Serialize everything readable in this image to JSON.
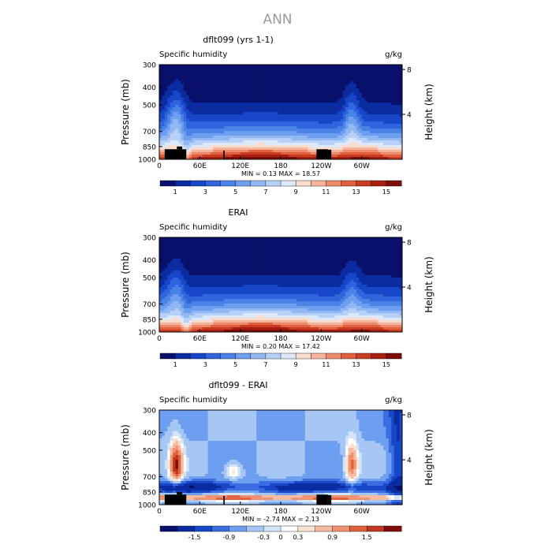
{
  "figure": {
    "title": "ANN"
  },
  "chart_data": [
    {
      "type": "heatmap",
      "title": "dflt099 (yrs 1-1)",
      "left_subtitle": "Specific humidity",
      "right_subtitle": "g/kg",
      "ylabel": "Pressure (mb)",
      "y2label": "Height (km)",
      "x_ticks": [
        "0",
        "60E",
        "120E",
        "180",
        "120W",
        "60W"
      ],
      "x_tick_values": [
        0,
        60,
        120,
        180,
        240,
        300
      ],
      "xlim": [
        0,
        360
      ],
      "y_ticks": [
        "300",
        "400",
        "500",
        "700",
        "850",
        "1000"
      ],
      "y_tick_values": [
        300,
        400,
        500,
        700,
        850,
        1000
      ],
      "ylim": [
        1000,
        300
      ],
      "y_scale": "log",
      "y2_ticks": [
        "4",
        "8"
      ],
      "y2_tick_values": [
        4,
        8
      ],
      "stats": "MIN =   0.13   MAX =  18.57",
      "colorbar_labels": [
        "1",
        "3",
        "5",
        "7",
        "9",
        "11",
        "13",
        "15"
      ],
      "colorbar_colors": [
        "#08106b",
        "#0a2ca0",
        "#1846c8",
        "#2f64dc",
        "#4b82e6",
        "#6e9ef0",
        "#92b8f4",
        "#b7d0f7",
        "#dde8f8",
        "#f8dccd",
        "#f5b49b",
        "#ee8a6a",
        "#e06040",
        "#c83c22",
        "#a81e10",
        "#7e0c08"
      ],
      "field": "humidity",
      "terrain": true
    },
    {
      "type": "heatmap",
      "title": "ERAI",
      "left_subtitle": "Specific humidity",
      "right_subtitle": "g/kg",
      "ylabel": "Pressure (mb)",
      "y2label": "Height (km)",
      "x_ticks": [
        "0",
        "60E",
        "120E",
        "180",
        "120W",
        "60W"
      ],
      "x_tick_values": [
        0,
        60,
        120,
        180,
        240,
        300
      ],
      "xlim": [
        0,
        360
      ],
      "y_ticks": [
        "300",
        "400",
        "500",
        "700",
        "850",
        "1000"
      ],
      "y_tick_values": [
        300,
        400,
        500,
        700,
        850,
        1000
      ],
      "ylim": [
        1000,
        300
      ],
      "y_scale": "log",
      "y2_ticks": [
        "4",
        "8"
      ],
      "y2_tick_values": [
        4,
        8
      ],
      "stats": "MIN =   0.20   MAX =  17.42",
      "colorbar_labels": [
        "1",
        "3",
        "5",
        "7",
        "9",
        "11",
        "13",
        "15"
      ],
      "colorbar_colors": [
        "#08106b",
        "#0a2ca0",
        "#1846c8",
        "#2f64dc",
        "#4b82e6",
        "#6e9ef0",
        "#92b8f4",
        "#b7d0f7",
        "#dde8f8",
        "#f8dccd",
        "#f5b49b",
        "#ee8a6a",
        "#e06040",
        "#c83c22",
        "#a81e10",
        "#7e0c08"
      ],
      "field": "humidity",
      "terrain": false
    },
    {
      "type": "heatmap",
      "title": "dflt099 - ERAI",
      "left_subtitle": "Specific humidity",
      "right_subtitle": "g/kg",
      "ylabel": "Pressure (mb)",
      "y2label": "Height (km)",
      "x_ticks": [
        "0",
        "60E",
        "120E",
        "180",
        "120W",
        "60W"
      ],
      "x_tick_values": [
        0,
        60,
        120,
        180,
        240,
        300
      ],
      "xlim": [
        0,
        360
      ],
      "y_ticks": [
        "300",
        "400",
        "500",
        "700",
        "850",
        "1000"
      ],
      "y_tick_values": [
        300,
        400,
        500,
        700,
        850,
        1000
      ],
      "ylim": [
        1000,
        300
      ],
      "y_scale": "log",
      "y2_ticks": [
        "4",
        "8"
      ],
      "y2_tick_values": [
        4,
        8
      ],
      "stats": "MIN =  -2.74   MAX =   2.13",
      "colorbar_labels": [
        "-1.5",
        "-0.9",
        "-0.3",
        "0",
        "0.3",
        "0.9",
        "1.5"
      ],
      "colorbar_colors": [
        "#08106b",
        "#0a2ca0",
        "#1846c8",
        "#3a6ee0",
        "#6e9ef0",
        "#a6c6f4",
        "#d4e4f8",
        "#ffffff",
        "#fbe2d2",
        "#f6bca2",
        "#ef9272",
        "#e0623e",
        "#c03820",
        "#7e0c08"
      ],
      "field": "difference",
      "terrain": true
    }
  ]
}
